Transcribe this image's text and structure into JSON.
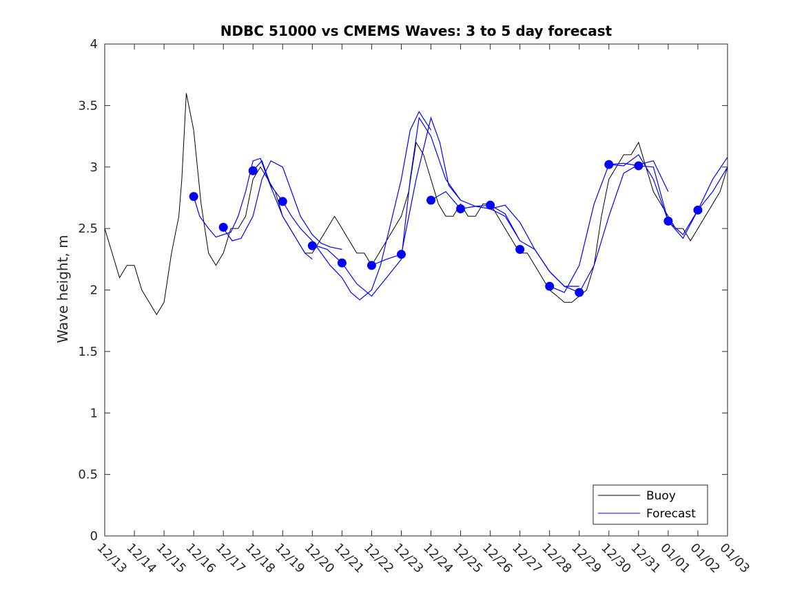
{
  "chart_data": {
    "type": "line",
    "title": "NDBC 51000 vs CMEMS Waves: 3 to 5 day forecast",
    "xlabel": "",
    "ylabel": "Wave height, m",
    "ylim": [
      0,
      4
    ],
    "yticks": [
      0,
      0.5,
      1,
      1.5,
      2,
      2.5,
      3,
      3.5,
      4
    ],
    "xlim": [
      0,
      21
    ],
    "x_tick_labels": [
      "12/13",
      "12/14",
      "12/15",
      "12/16",
      "12/17",
      "12/18",
      "12/19",
      "12/20",
      "12/21",
      "12/22",
      "12/23",
      "12/24",
      "12/25",
      "12/26",
      "12/27",
      "12/28",
      "12/29",
      "12/30",
      "12/31",
      "01/01",
      "01/02",
      "01/03"
    ],
    "legend": {
      "location": "bottom-right",
      "entries": [
        "Buoy",
        "Forecast"
      ]
    },
    "colors": {
      "buoy": "#000000",
      "forecast": "#0000ff",
      "axes": "#262626"
    },
    "series": [
      {
        "name": "Buoy",
        "x": [
          0,
          0.25,
          0.5,
          0.75,
          1,
          1.25,
          1.5,
          1.75,
          2,
          2.25,
          2.5,
          2.6,
          2.75,
          3,
          3.25,
          3.5,
          3.75,
          4,
          4.25,
          4.5,
          4.75,
          5,
          5.25,
          5.5,
          5.75,
          6,
          6.25,
          6.5,
          6.75,
          7,
          7.25,
          7.5,
          7.75,
          8,
          8.25,
          8.5,
          8.75,
          9,
          9.25,
          9.5,
          9.75,
          10,
          10.25,
          10.5,
          10.75,
          11,
          11.25,
          11.5,
          11.75,
          12,
          12.25,
          12.5,
          12.75,
          13,
          13.25,
          13.5,
          13.75,
          14,
          14.25,
          14.5,
          14.75,
          15,
          15.25,
          15.5,
          15.75,
          16,
          16.25,
          16.5,
          16.75,
          17,
          17.25,
          17.5,
          17.75,
          18,
          18.25,
          18.5,
          18.75,
          19,
          19.25,
          19.5,
          19.75,
          20,
          20.25,
          20.5,
          20.75,
          21
        ],
        "y": [
          2.5,
          2.3,
          2.1,
          2.2,
          2.2,
          2.0,
          1.9,
          1.8,
          1.9,
          2.3,
          2.6,
          2.9,
          3.6,
          3.3,
          2.7,
          2.3,
          2.2,
          2.3,
          2.5,
          2.5,
          2.6,
          2.9,
          3.0,
          2.9,
          2.8,
          2.6,
          2.5,
          2.4,
          2.3,
          2.3,
          2.4,
          2.5,
          2.6,
          2.5,
          2.4,
          2.3,
          2.3,
          2.2,
          2.3,
          2.4,
          2.5,
          2.6,
          2.8,
          3.2,
          3.1,
          2.9,
          2.7,
          2.6,
          2.6,
          2.7,
          2.6,
          2.6,
          2.7,
          2.7,
          2.6,
          2.5,
          2.4,
          2.3,
          2.3,
          2.2,
          2.1,
          2.0,
          1.95,
          1.9,
          1.9,
          1.95,
          2.0,
          2.2,
          2.6,
          2.9,
          3.0,
          3.1,
          3.1,
          3.2,
          3.0,
          2.8,
          2.7,
          2.6,
          2.5,
          2.5,
          2.4,
          2.5,
          2.6,
          2.7,
          2.8,
          3.0
        ]
      },
      {
        "name": "Forecast",
        "segments": [
          {
            "x": [
              3,
              3.2,
              3.5,
              3.75,
              4,
              4.25,
              4.5,
              4.75,
              5,
              5.25,
              5.5,
              5.75,
              6,
              6.25,
              6.5,
              6.75,
              7
            ],
            "y": [
              2.76,
              2.6,
              2.5,
              2.43,
              2.45,
              2.47,
              2.6,
              2.8,
              3.05,
              3.07,
              2.9,
              2.75,
              2.6,
              2.5,
              2.4,
              2.3,
              2.25
            ]
          },
          {
            "x": [
              4,
              4.3,
              4.6,
              5,
              5.3,
              5.6,
              6,
              6.3,
              6.6,
              7,
              7.3,
              7.6,
              8
            ],
            "y": [
              2.5,
              2.4,
              2.42,
              2.6,
              2.9,
              3.05,
              3.0,
              2.8,
              2.6,
              2.45,
              2.38,
              2.35,
              2.33
            ]
          },
          {
            "x": [
              5,
              5.3,
              5.6,
              6,
              6.3,
              6.6,
              7,
              7.3,
              7.6,
              8,
              8.3,
              8.6,
              9,
              9.3,
              9.6,
              10,
              10.3,
              10.6,
              11
            ],
            "y": [
              2.97,
              3.05,
              2.85,
              2.72,
              2.6,
              2.5,
              2.4,
              2.3,
              2.2,
              2.1,
              1.98,
              1.92,
              2.0,
              2.2,
              2.5,
              2.9,
              3.3,
              3.45,
              3.3
            ]
          },
          {
            "x": [
              7,
              7.5,
              8,
              8.5,
              9,
              9.5,
              10,
              10.3,
              10.6,
              11,
              11.5,
              12
            ],
            "y": [
              2.37,
              2.33,
              2.22,
              2.05,
              1.95,
              2.1,
              2.25,
              2.9,
              3.4,
              3.25,
              2.9,
              2.73
            ]
          },
          {
            "x": [
              9,
              9.5,
              10,
              10.5,
              11,
              11.3,
              11.6,
              12,
              12.5,
              13,
              13.5,
              14
            ],
            "y": [
              2.2,
              2.25,
              2.29,
              2.9,
              3.4,
              3.2,
              2.85,
              2.73,
              2.68,
              2.66,
              2.6,
              2.4
            ]
          },
          {
            "x": [
              11,
              11.5,
              12,
              12.5,
              13,
              13.5,
              14,
              14.5,
              15,
              15.5,
              16
            ],
            "y": [
              2.73,
              2.8,
              2.66,
              2.68,
              2.69,
              2.62,
              2.4,
              2.33,
              2.15,
              2.03,
              2.03
            ]
          },
          {
            "x": [
              13,
              13.5,
              14,
              14.5,
              15,
              15.5,
              16,
              16.5,
              17,
              17.5,
              18,
              18.5,
              19
            ],
            "y": [
              2.66,
              2.69,
              2.55,
              2.33,
              2.15,
              2.03,
              1.98,
              2.2,
              2.6,
              2.95,
              3.02,
              3.05,
              2.8
            ]
          },
          {
            "x": [
              15,
              15.5,
              16,
              16.5,
              17,
              17.5,
              18,
              18.5,
              19,
              19.5,
              20,
              20.5,
              21
            ],
            "y": [
              2.03,
              1.98,
              2.2,
              2.7,
              3.02,
              3.03,
              3.01,
              3.0,
              2.56,
              2.42,
              2.65,
              2.8,
              3.0
            ]
          },
          {
            "x": [
              17,
              17.5,
              18,
              18.5,
              19,
              19.5,
              20,
              20.5,
              21
            ],
            "y": [
              3.02,
              3.01,
              3.1,
              2.9,
              2.56,
              2.45,
              2.65,
              2.9,
              3.08
            ]
          }
        ],
        "markers_x": [
          3,
          4,
          5,
          6,
          7,
          8,
          9,
          10,
          11,
          12,
          13,
          14,
          15,
          16,
          17,
          18,
          19,
          20
        ],
        "markers_y": [
          2.76,
          2.51,
          2.97,
          2.72,
          2.36,
          2.22,
          2.2,
          2.29,
          2.73,
          2.66,
          2.69,
          2.33,
          2.03,
          1.98,
          3.02,
          3.01,
          2.56,
          2.65
        ]
      }
    ]
  }
}
